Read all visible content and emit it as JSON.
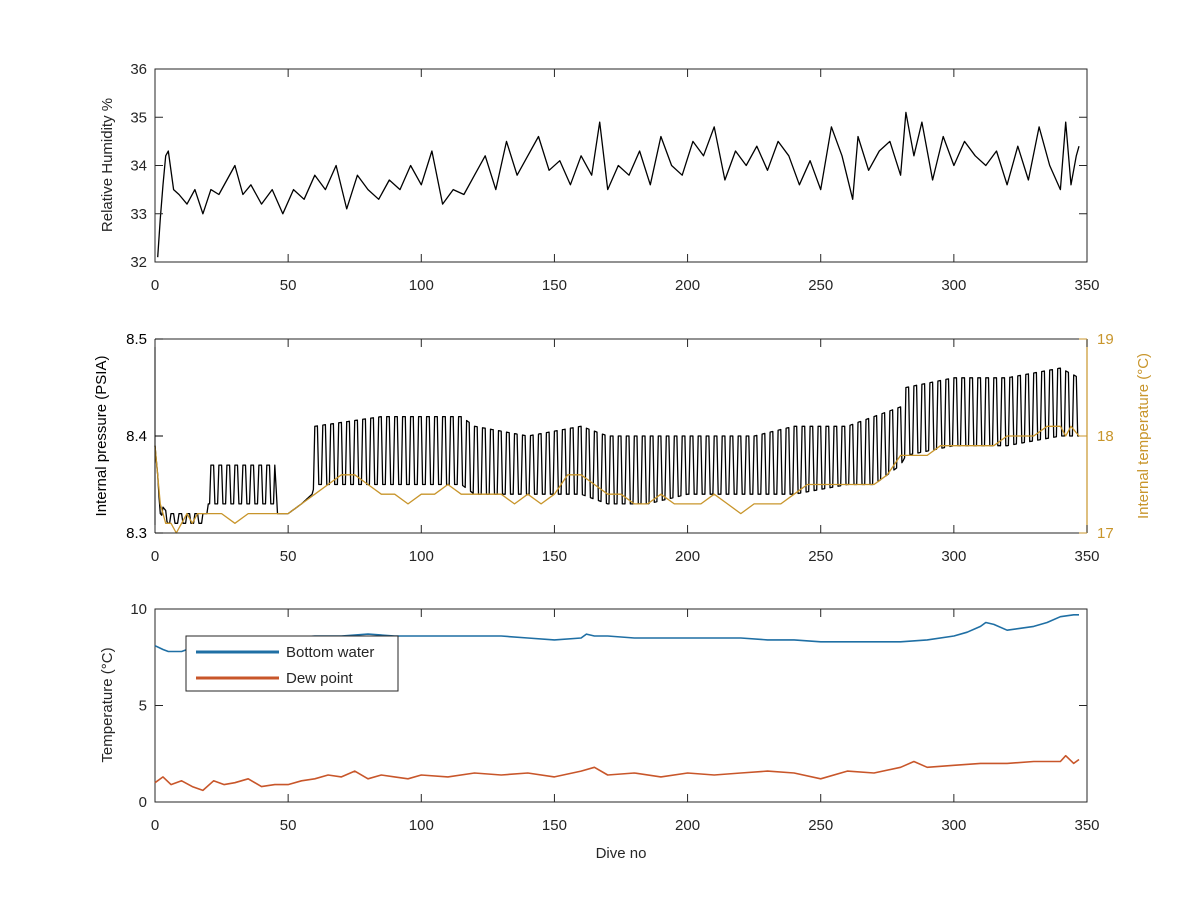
{
  "figure": {
    "xlabel": "Dive no",
    "colors": {
      "axis": "#262626",
      "humidity": "#000000",
      "pressure": "#000000",
      "internal_temperature": "#c8952b",
      "bottom_water": "#1f6fa4",
      "dew_point": "#c8562a"
    }
  },
  "chart_data": [
    {
      "type": "line",
      "title": "",
      "xlabel": "",
      "ylabel": "Relative Humidity %",
      "xlim": [
        0,
        350
      ],
      "ylim": [
        32,
        36
      ],
      "xticks": [
        0,
        50,
        100,
        150,
        200,
        250,
        300,
        350
      ],
      "yticks": [
        32,
        33,
        34,
        35,
        36
      ],
      "grid": false,
      "series": [
        {
          "color": "#000000",
          "x": [
            1,
            2,
            3,
            4,
            5,
            7,
            9,
            12,
            15,
            18,
            21,
            24,
            27,
            30,
            33,
            36,
            40,
            44,
            48,
            52,
            56,
            60,
            64,
            68,
            72,
            76,
            80,
            84,
            88,
            92,
            96,
            100,
            104,
            108,
            112,
            116,
            120,
            124,
            128,
            132,
            136,
            140,
            144,
            148,
            152,
            156,
            160,
            164,
            167,
            170,
            174,
            178,
            182,
            186,
            190,
            194,
            198,
            202,
            206,
            210,
            214,
            218,
            222,
            226,
            230,
            234,
            238,
            242,
            246,
            250,
            254,
            258,
            262,
            264,
            268,
            272,
            276,
            280,
            282,
            285,
            288,
            292,
            296,
            300,
            304,
            308,
            312,
            316,
            320,
            324,
            328,
            332,
            336,
            340,
            342,
            344,
            346,
            347
          ],
          "values": [
            32.1,
            32.9,
            33.6,
            34.2,
            34.3,
            33.5,
            33.4,
            33.2,
            33.5,
            33.0,
            33.5,
            33.4,
            33.7,
            34.0,
            33.4,
            33.6,
            33.2,
            33.5,
            33.0,
            33.5,
            33.3,
            33.8,
            33.5,
            34.0,
            33.1,
            33.8,
            33.5,
            33.3,
            33.7,
            33.5,
            34.0,
            33.6,
            34.3,
            33.2,
            33.5,
            33.4,
            33.8,
            34.2,
            33.5,
            34.5,
            33.8,
            34.2,
            34.6,
            33.9,
            34.1,
            33.6,
            34.2,
            33.8,
            34.9,
            33.5,
            34.0,
            33.8,
            34.3,
            33.6,
            34.6,
            34.0,
            33.8,
            34.5,
            34.2,
            34.8,
            33.7,
            34.3,
            34.0,
            34.4,
            33.9,
            34.5,
            34.2,
            33.6,
            34.1,
            33.5,
            34.8,
            34.2,
            33.3,
            34.6,
            33.9,
            34.3,
            34.5,
            33.8,
            35.1,
            34.2,
            34.9,
            33.7,
            34.6,
            34.0,
            34.5,
            34.2,
            34.0,
            34.3,
            33.6,
            34.4,
            33.7,
            34.8,
            34.0,
            33.5,
            34.9,
            33.6,
            34.2,
            34.4
          ]
        }
      ]
    },
    {
      "type": "line",
      "title": "",
      "xlabel": "",
      "ylabel": "Internal pressure (PSIA)",
      "ylabel_right": "Internal temperature (°C)",
      "xlim": [
        0,
        350
      ],
      "ylim": [
        8.3,
        8.5
      ],
      "ylim_right": [
        17,
        19
      ],
      "xticks": [
        0,
        50,
        100,
        150,
        200,
        250,
        300,
        350
      ],
      "yticks": [
        8.3,
        8.4,
        8.5
      ],
      "yticks_right": [
        17,
        18,
        19
      ],
      "grid": false,
      "series": [
        {
          "axis": "left",
          "color": "#000000",
          "oscillating": true,
          "x": [
            0,
            2,
            5,
            10,
            15,
            19,
            20,
            45,
            46,
            50,
            55,
            59,
            60,
            85,
            100,
            115,
            120,
            140,
            160,
            170,
            185,
            200,
            210,
            225,
            240,
            260,
            270,
            280,
            282,
            300,
            320,
            340,
            347
          ],
          "upper": [
            8.39,
            8.33,
            8.32,
            8.32,
            8.32,
            8.32,
            8.37,
            8.37,
            8.32,
            8.32,
            8.33,
            8.34,
            8.41,
            8.42,
            8.42,
            8.42,
            8.41,
            8.4,
            8.41,
            8.4,
            8.4,
            8.4,
            8.4,
            8.4,
            8.41,
            8.41,
            8.42,
            8.43,
            8.45,
            8.46,
            8.46,
            8.47,
            8.46
          ],
          "lower": [
            8.39,
            8.32,
            8.31,
            8.31,
            8.31,
            8.31,
            8.33,
            8.33,
            8.32,
            8.32,
            8.33,
            8.34,
            8.35,
            8.35,
            8.35,
            8.35,
            8.34,
            8.34,
            8.34,
            8.33,
            8.33,
            8.34,
            8.34,
            8.34,
            8.34,
            8.35,
            8.35,
            8.37,
            8.38,
            8.39,
            8.39,
            8.4,
            8.4
          ]
        },
        {
          "axis": "right",
          "color": "#c8952b",
          "x": [
            0,
            2,
            4,
            6,
            8,
            10,
            12,
            14,
            16,
            20,
            25,
            30,
            35,
            40,
            45,
            50,
            55,
            60,
            65,
            70,
            75,
            80,
            85,
            90,
            95,
            100,
            105,
            110,
            115,
            120,
            125,
            130,
            135,
            140,
            145,
            150,
            155,
            160,
            165,
            170,
            175,
            180,
            185,
            190,
            195,
            200,
            205,
            210,
            215,
            220,
            225,
            230,
            235,
            240,
            245,
            250,
            255,
            260,
            265,
            270,
            275,
            280,
            285,
            290,
            295,
            300,
            305,
            310,
            315,
            320,
            325,
            330,
            335,
            340,
            342,
            344,
            347
          ],
          "values": [
            17.9,
            17.3,
            17.1,
            17.1,
            17.0,
            17.1,
            17.2,
            17.1,
            17.2,
            17.2,
            17.2,
            17.1,
            17.2,
            17.2,
            17.2,
            17.2,
            17.3,
            17.4,
            17.5,
            17.6,
            17.6,
            17.5,
            17.4,
            17.4,
            17.3,
            17.4,
            17.4,
            17.5,
            17.4,
            17.4,
            17.4,
            17.4,
            17.3,
            17.4,
            17.3,
            17.4,
            17.6,
            17.6,
            17.5,
            17.4,
            17.4,
            17.3,
            17.3,
            17.4,
            17.3,
            17.3,
            17.3,
            17.4,
            17.3,
            17.2,
            17.3,
            17.3,
            17.3,
            17.4,
            17.5,
            17.5,
            17.5,
            17.5,
            17.5,
            17.5,
            17.6,
            17.8,
            17.8,
            17.8,
            17.9,
            17.9,
            17.9,
            17.9,
            17.9,
            18.0,
            18.0,
            18.0,
            18.1,
            18.1,
            18.0,
            18.1,
            18.0
          ]
        }
      ]
    },
    {
      "type": "line",
      "title": "",
      "xlabel": "Dive no",
      "ylabel": "Temperature (°C)",
      "xlim": [
        0,
        350
      ],
      "ylim": [
        0,
        10
      ],
      "xticks": [
        0,
        50,
        100,
        150,
        200,
        250,
        300,
        350
      ],
      "yticks": [
        0,
        5,
        10
      ],
      "grid": false,
      "legend": "top-left",
      "series": [
        {
          "name": "Bottom water",
          "color": "#1f6fa4",
          "x": [
            0,
            3,
            5,
            10,
            20,
            30,
            40,
            50,
            60,
            70,
            80,
            90,
            100,
            110,
            120,
            130,
            140,
            150,
            160,
            162,
            165,
            170,
            180,
            190,
            200,
            210,
            220,
            230,
            240,
            250,
            260,
            270,
            280,
            290,
            300,
            305,
            310,
            312,
            315,
            320,
            325,
            330,
            335,
            340,
            345,
            347
          ],
          "values": [
            8.1,
            7.9,
            7.8,
            7.8,
            8.3,
            8.4,
            8.5,
            8.5,
            8.6,
            8.6,
            8.7,
            8.6,
            8.6,
            8.6,
            8.6,
            8.6,
            8.5,
            8.4,
            8.5,
            8.7,
            8.6,
            8.6,
            8.5,
            8.5,
            8.5,
            8.5,
            8.5,
            8.4,
            8.4,
            8.3,
            8.3,
            8.3,
            8.3,
            8.4,
            8.6,
            8.8,
            9.1,
            9.3,
            9.2,
            8.9,
            9.0,
            9.1,
            9.3,
            9.6,
            9.7,
            9.7
          ]
        },
        {
          "name": "Dew point",
          "color": "#c8562a",
          "x": [
            0,
            3,
            6,
            10,
            14,
            18,
            22,
            26,
            30,
            35,
            40,
            45,
            50,
            55,
            60,
            65,
            70,
            75,
            80,
            85,
            90,
            95,
            100,
            110,
            120,
            130,
            140,
            150,
            160,
            165,
            170,
            180,
            190,
            200,
            210,
            220,
            230,
            240,
            250,
            260,
            270,
            280,
            285,
            290,
            300,
            310,
            320,
            330,
            340,
            342,
            345,
            347
          ],
          "values": [
            1.0,
            1.3,
            0.9,
            1.1,
            0.8,
            0.6,
            1.1,
            0.9,
            1.0,
            1.2,
            0.8,
            0.9,
            0.9,
            1.1,
            1.2,
            1.4,
            1.3,
            1.6,
            1.2,
            1.4,
            1.3,
            1.2,
            1.4,
            1.3,
            1.5,
            1.4,
            1.5,
            1.3,
            1.6,
            1.8,
            1.4,
            1.5,
            1.3,
            1.5,
            1.4,
            1.5,
            1.6,
            1.5,
            1.2,
            1.6,
            1.5,
            1.8,
            2.1,
            1.8,
            1.9,
            2.0,
            2.0,
            2.1,
            2.1,
            2.4,
            2.0,
            2.2
          ]
        }
      ]
    }
  ]
}
